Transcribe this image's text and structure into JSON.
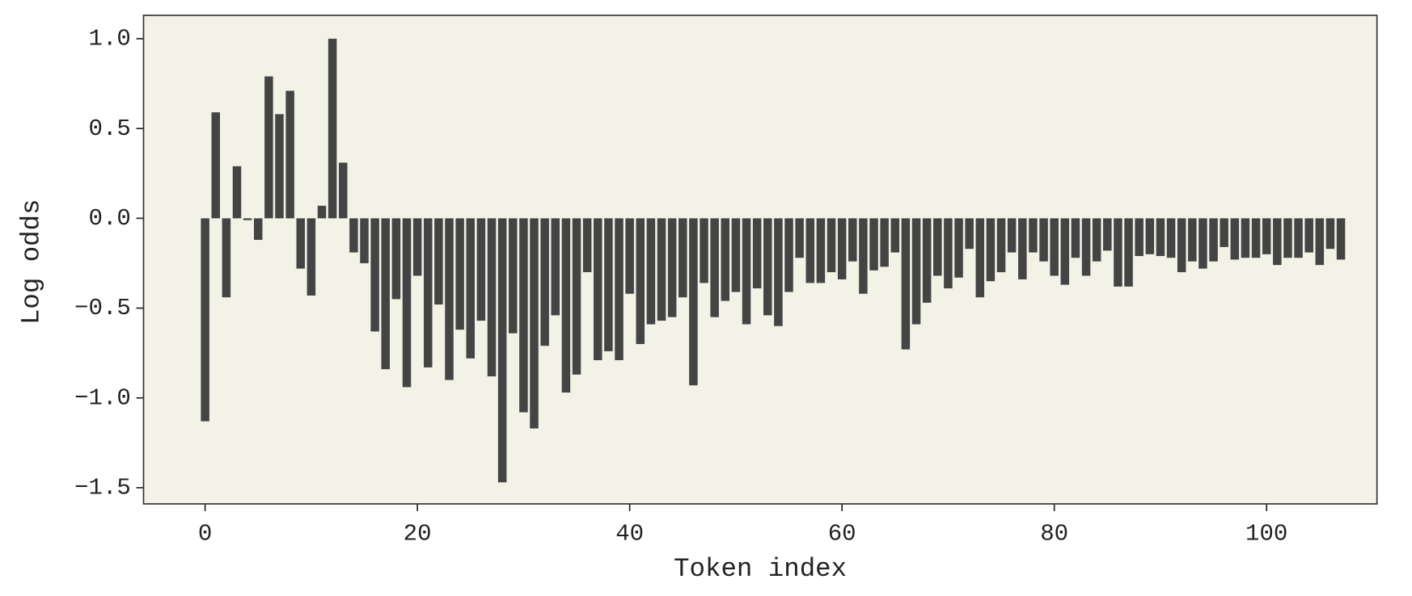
{
  "chart_data": {
    "type": "bar",
    "xlabel": "Token index",
    "ylabel": "Log odds",
    "color": "#444444",
    "background": "#f3f2e7",
    "x": [
      0,
      1,
      2,
      3,
      4,
      5,
      6,
      7,
      8,
      9,
      10,
      11,
      12,
      13,
      14,
      15,
      16,
      17,
      18,
      19,
      20,
      21,
      22,
      23,
      24,
      25,
      26,
      27,
      28,
      29,
      30,
      31,
      32,
      33,
      34,
      35,
      36,
      37,
      38,
      39,
      40,
      41,
      42,
      43,
      44,
      45,
      46,
      47,
      48,
      49,
      50,
      51,
      52,
      53,
      54,
      55,
      56,
      57,
      58,
      59,
      60,
      61,
      62,
      63,
      64,
      65,
      66,
      67,
      68,
      69,
      70,
      71,
      72,
      73,
      74,
      75,
      76,
      77,
      78,
      79,
      80,
      81,
      82,
      83,
      84,
      85,
      86,
      87,
      88,
      89,
      90,
      91,
      92,
      93,
      94,
      95,
      96,
      97,
      98,
      99,
      100,
      101,
      102,
      103,
      104,
      105,
      106,
      107
    ],
    "values": [
      -1.13,
      0.59,
      -0.44,
      0.29,
      -0.01,
      -0.12,
      0.79,
      0.58,
      0.71,
      -0.28,
      -0.43,
      0.07,
      1.0,
      0.31,
      -0.19,
      -0.25,
      -0.63,
      -0.84,
      -0.45,
      -0.94,
      -0.32,
      -0.83,
      -0.48,
      -0.9,
      -0.62,
      -0.78,
      -0.57,
      -0.88,
      -1.47,
      -0.64,
      -1.08,
      -1.17,
      -0.71,
      -0.54,
      -0.97,
      -0.87,
      -0.3,
      -0.79,
      -0.74,
      -0.79,
      -0.42,
      -0.7,
      -0.59,
      -0.57,
      -0.55,
      -0.44,
      -0.93,
      -0.36,
      -0.55,
      -0.46,
      -0.41,
      -0.59,
      -0.39,
      -0.54,
      -0.6,
      -0.41,
      -0.22,
      -0.36,
      -0.36,
      -0.3,
      -0.34,
      -0.24,
      -0.42,
      -0.29,
      -0.27,
      -0.19,
      -0.73,
      -0.59,
      -0.47,
      -0.32,
      -0.39,
      -0.33,
      -0.17,
      -0.44,
      -0.35,
      -0.3,
      -0.19,
      -0.34,
      -0.19,
      -0.24,
      -0.32,
      -0.37,
      -0.22,
      -0.32,
      -0.24,
      -0.18,
      -0.38,
      -0.38,
      -0.21,
      -0.2,
      -0.21,
      -0.22,
      -0.3,
      -0.24,
      -0.28,
      -0.24,
      -0.16,
      -0.23,
      -0.22,
      -0.22,
      -0.2,
      -0.26,
      -0.22,
      -0.22,
      -0.19,
      -0.26,
      -0.17,
      -0.23
    ],
    "xlim": [
      -5.8,
      110.4
    ],
    "xticks": [
      0,
      20,
      40,
      60,
      80,
      100
    ],
    "ylim": [
      -1.59,
      1.13
    ],
    "yticks": [
      {
        "value": 1,
        "label": "1.0"
      },
      0.5,
      {
        "value": 0,
        "label": "0.0"
      },
      {
        "value": -0.5,
        "label": "−0.5"
      },
      {
        "value": -1,
        "label": "−1.0"
      },
      {
        "value": -1.5,
        "label": "−1.5"
      }
    ],
    "bar_width": 0.8
  }
}
